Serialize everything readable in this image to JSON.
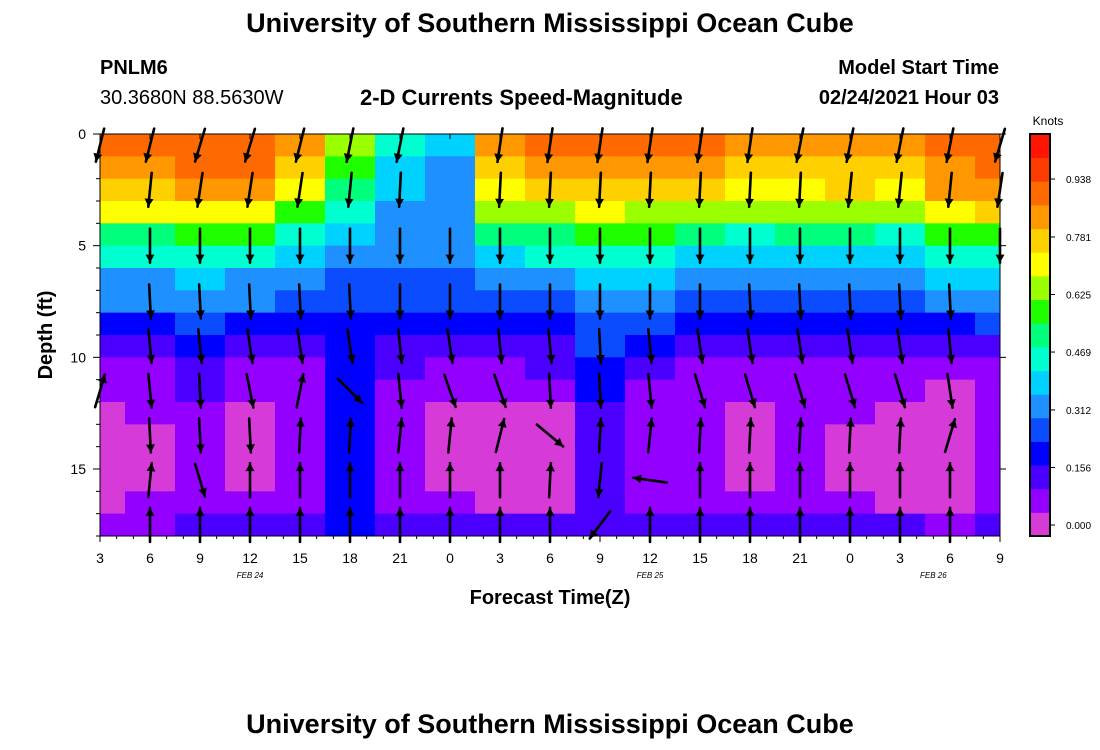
{
  "header": {
    "title": "University of Southern Mississippi Ocean Cube",
    "station_id": "PNLM6",
    "station_coords": "30.3680N 88.5630W",
    "model_start_label": "Model Start Time",
    "model_start_value": "02/24/2021 Hour 03",
    "footer_title": "University of Southern Mississippi Ocean Cube"
  },
  "colors": {
    "arrow": "#000000",
    "scale": [
      "#d63bd8",
      "#9300ff",
      "#4b00ff",
      "#0000ff",
      "#0b4cff",
      "#1e90ff",
      "#00d2ff",
      "#00ffd0",
      "#00ff7a",
      "#1fff00",
      "#9aff00",
      "#ffff00",
      "#ffd000",
      "#ff9800",
      "#ff6a00",
      "#ff3c00",
      "#ff1500"
    ]
  },
  "chart_data": {
    "type": "heatmap",
    "title": "2-D Currents Speed-Magnitude",
    "xlabel": "Forecast Time(Z)",
    "ylabel": "Depth (ft)",
    "x_tick_labels": [
      "3",
      "6",
      "9",
      "12",
      "15",
      "18",
      "21",
      "0",
      "3",
      "6",
      "9",
      "12",
      "15",
      "18",
      "21",
      "0",
      "3",
      "6",
      "9"
    ],
    "x_hours": [
      0,
      3,
      6,
      9,
      12,
      15,
      18,
      21,
      24,
      27,
      30,
      33,
      36,
      39,
      42,
      45,
      48,
      51,
      54
    ],
    "xlim": [
      0,
      54
    ],
    "date_labels": [
      {
        "text": "FEB 24",
        "hour": 9
      },
      {
        "text": "FEB 25",
        "hour": 33
      },
      {
        "text": "FEB 26",
        "hour": 50
      }
    ],
    "y_tick_labels": [
      "0",
      "5",
      "10",
      "15"
    ],
    "y_ticks": [
      0,
      5,
      10,
      15
    ],
    "ylim": [
      0,
      18
    ],
    "colorbar": {
      "units": "Knots",
      "tick_labels": [
        "0.938",
        "0.781",
        "0.625",
        "0.469",
        "0.312",
        "0.156",
        "0.000"
      ],
      "tick_values": [
        0.938,
        0.781,
        0.625,
        0.469,
        0.312,
        0.156,
        0.0
      ],
      "range": [
        0,
        1.09
      ]
    },
    "speed_grid": {
      "hours": [
        0,
        3,
        6,
        9,
        12,
        15,
        18,
        21,
        24,
        27,
        30,
        33,
        36,
        39,
        42,
        45,
        48,
        51,
        54
      ],
      "depths": [
        0.5,
        1.5,
        2.5,
        3.5,
        4.5,
        5.5,
        6.5,
        7.5,
        8.5,
        9.5,
        10.5,
        11.5,
        12.5,
        13.5,
        14.5,
        15.5,
        16.5,
        17.5
      ],
      "rows": [
        [
          0.9,
          0.9,
          0.95,
          0.95,
          0.85,
          0.65,
          0.45,
          0.4,
          0.85,
          0.9,
          0.9,
          0.9,
          0.9,
          0.85,
          0.85,
          0.85,
          0.85,
          0.9,
          0.95
        ],
        [
          0.85,
          0.85,
          0.9,
          0.9,
          0.8,
          0.6,
          0.42,
          0.38,
          0.8,
          0.85,
          0.85,
          0.85,
          0.85,
          0.8,
          0.8,
          0.82,
          0.8,
          0.88,
          0.92
        ],
        [
          0.8,
          0.8,
          0.85,
          0.85,
          0.72,
          0.55,
          0.4,
          0.36,
          0.75,
          0.8,
          0.8,
          0.8,
          0.8,
          0.75,
          0.75,
          0.78,
          0.75,
          0.85,
          0.88
        ],
        [
          0.72,
          0.72,
          0.75,
          0.75,
          0.62,
          0.48,
          0.38,
          0.35,
          0.65,
          0.7,
          0.72,
          0.7,
          0.68,
          0.65,
          0.65,
          0.68,
          0.65,
          0.75,
          0.8
        ],
        [
          0.55,
          0.55,
          0.6,
          0.58,
          0.5,
          0.42,
          0.36,
          0.34,
          0.52,
          0.55,
          0.6,
          0.58,
          0.52,
          0.5,
          0.52,
          0.55,
          0.5,
          0.6,
          0.62
        ],
        [
          0.45,
          0.45,
          0.48,
          0.45,
          0.42,
          0.38,
          0.34,
          0.33,
          0.42,
          0.45,
          0.5,
          0.48,
          0.42,
          0.4,
          0.42,
          0.44,
          0.42,
          0.48,
          0.5
        ],
        [
          0.38,
          0.38,
          0.4,
          0.38,
          0.36,
          0.32,
          0.3,
          0.3,
          0.35,
          0.38,
          0.42,
          0.4,
          0.36,
          0.34,
          0.35,
          0.36,
          0.35,
          0.4,
          0.42
        ],
        [
          0.33,
          0.33,
          0.35,
          0.33,
          0.3,
          0.28,
          0.28,
          0.27,
          0.3,
          0.32,
          0.36,
          0.34,
          0.3,
          0.29,
          0.3,
          0.3,
          0.3,
          0.33,
          0.35
        ],
        [
          0.25,
          0.25,
          0.28,
          0.25,
          0.22,
          0.25,
          0.24,
          0.22,
          0.22,
          0.25,
          0.3,
          0.28,
          0.22,
          0.22,
          0.22,
          0.22,
          0.22,
          0.25,
          0.27
        ],
        [
          0.16,
          0.18,
          0.22,
          0.16,
          0.14,
          0.24,
          0.18,
          0.15,
          0.15,
          0.18,
          0.26,
          0.2,
          0.14,
          0.14,
          0.14,
          0.14,
          0.14,
          0.16,
          0.18
        ],
        [
          0.1,
          0.12,
          0.18,
          0.1,
          0.1,
          0.22,
          0.14,
          0.1,
          0.1,
          0.13,
          0.22,
          0.14,
          0.1,
          0.09,
          0.1,
          0.1,
          0.09,
          0.1,
          0.12
        ],
        [
          0.08,
          0.1,
          0.15,
          0.08,
          0.08,
          0.21,
          0.11,
          0.08,
          0.08,
          0.1,
          0.2,
          0.1,
          0.08,
          0.07,
          0.08,
          0.08,
          0.07,
          0.06,
          0.08
        ],
        [
          0.06,
          0.08,
          0.12,
          0.06,
          0.08,
          0.2,
          0.1,
          0.06,
          0.05,
          0.05,
          0.19,
          0.08,
          0.08,
          0.06,
          0.07,
          0.07,
          0.05,
          0.04,
          0.08
        ],
        [
          0.05,
          0.06,
          0.1,
          0.06,
          0.08,
          0.2,
          0.09,
          0.06,
          0.04,
          0.03,
          0.18,
          0.07,
          0.08,
          0.06,
          0.07,
          0.06,
          0.04,
          0.03,
          0.08
        ],
        [
          0.05,
          0.05,
          0.09,
          0.06,
          0.08,
          0.2,
          0.09,
          0.05,
          0.04,
          0.01,
          0.16,
          0.07,
          0.08,
          0.06,
          0.07,
          0.06,
          0.04,
          0.03,
          0.08
        ],
        [
          0.05,
          0.06,
          0.1,
          0.06,
          0.08,
          0.2,
          0.1,
          0.06,
          0.04,
          0.02,
          0.15,
          0.07,
          0.08,
          0.06,
          0.07,
          0.06,
          0.04,
          0.04,
          0.08
        ],
        [
          0.06,
          0.07,
          0.11,
          0.08,
          0.1,
          0.2,
          0.12,
          0.08,
          0.06,
          0.05,
          0.13,
          0.08,
          0.09,
          0.08,
          0.09,
          0.09,
          0.06,
          0.06,
          0.1
        ],
        [
          0.1,
          0.12,
          0.16,
          0.14,
          0.16,
          0.22,
          0.18,
          0.16,
          0.14,
          0.14,
          0.18,
          0.16,
          0.16,
          0.15,
          0.16,
          0.18,
          0.14,
          0.12,
          0.16
        ]
      ]
    },
    "vectors": {
      "hours": [
        0,
        3,
        6,
        9,
        12,
        15,
        18,
        21,
        24,
        27,
        30,
        33,
        36,
        39,
        42,
        45,
        48,
        51,
        54
      ],
      "depths": [
        0.5,
        2.5,
        5.0,
        7.5,
        9.5,
        11.5,
        13.5,
        15.5,
        17.5
      ],
      "rows": [
        [
          [
            -0.25,
            1.0
          ],
          [
            -0.25,
            1.0
          ],
          [
            -0.3,
            1.0
          ],
          [
            -0.3,
            1.0
          ],
          [
            -0.25,
            1.0
          ],
          [
            -0.2,
            1.0
          ],
          [
            -0.2,
            1.0
          ],
          [
            0,
            0
          ],
          [
            -0.15,
            1.0
          ],
          [
            -0.15,
            1.0
          ],
          [
            -0.15,
            1.0
          ],
          [
            -0.15,
            1.0
          ],
          [
            -0.15,
            1.0
          ],
          [
            -0.15,
            1.0
          ],
          [
            -0.2,
            1.0
          ],
          [
            -0.2,
            1.0
          ],
          [
            -0.2,
            1.0
          ],
          [
            -0.2,
            1.0
          ],
          [
            -0.3,
            1.0
          ]
        ],
        [
          [
            0,
            0
          ],
          [
            -0.1,
            1.0
          ],
          [
            -0.15,
            1.0
          ],
          [
            -0.15,
            1.0
          ],
          [
            -0.15,
            1.0
          ],
          [
            -0.1,
            1.0
          ],
          [
            -0.05,
            1.0
          ],
          [
            0,
            0
          ],
          [
            -0.05,
            1.0
          ],
          [
            -0.05,
            1.0
          ],
          [
            -0.05,
            1.0
          ],
          [
            -0.05,
            1.0
          ],
          [
            -0.05,
            1.0
          ],
          [
            -0.05,
            1.0
          ],
          [
            -0.05,
            1.0
          ],
          [
            -0.1,
            1.0
          ],
          [
            -0.1,
            1.0
          ],
          [
            -0.1,
            1.0
          ],
          [
            -0.15,
            1.0
          ]
        ],
        [
          [
            0,
            0
          ],
          [
            0,
            1.0
          ],
          [
            0,
            1.0
          ],
          [
            0,
            1.0
          ],
          [
            0,
            1.0
          ],
          [
            0,
            1.0
          ],
          [
            0,
            1.0
          ],
          [
            0,
            1.0
          ],
          [
            0,
            1.0
          ],
          [
            0,
            1.0
          ],
          [
            0,
            1.0
          ],
          [
            0,
            1.0
          ],
          [
            0,
            1.0
          ],
          [
            0,
            1.0
          ],
          [
            0,
            1.0
          ],
          [
            0,
            1.0
          ],
          [
            0,
            1.0
          ],
          [
            0,
            1.0
          ],
          [
            0,
            1.0
          ]
        ],
        [
          [
            0,
            0
          ],
          [
            0.05,
            1.0
          ],
          [
            0.05,
            1.0
          ],
          [
            0.05,
            1.0
          ],
          [
            0.05,
            1.0
          ],
          [
            0.05,
            1.0
          ],
          [
            0,
            1.0
          ],
          [
            0,
            1.0
          ],
          [
            0,
            1.0
          ],
          [
            0,
            1.0
          ],
          [
            0,
            1.0
          ],
          [
            0,
            1.0
          ],
          [
            0,
            1.0
          ],
          [
            0.05,
            1.0
          ],
          [
            0.05,
            1.0
          ],
          [
            0.05,
            1.0
          ],
          [
            0.05,
            1.0
          ],
          [
            0.05,
            1.0
          ],
          [
            0,
            0
          ]
        ],
        [
          [
            0,
            0
          ],
          [
            0.1,
            1.0
          ],
          [
            0.1,
            1.0
          ],
          [
            0.15,
            1.0
          ],
          [
            0.15,
            1.0
          ],
          [
            0.15,
            1.0
          ],
          [
            0.1,
            1.0
          ],
          [
            0.15,
            1.0
          ],
          [
            0.1,
            1.0
          ],
          [
            0.1,
            1.0
          ],
          [
            0.05,
            1.0
          ],
          [
            0.1,
            1.0
          ],
          [
            0.15,
            1.0
          ],
          [
            0.15,
            1.0
          ],
          [
            0.15,
            1.0
          ],
          [
            0.15,
            1.0
          ],
          [
            0.15,
            1.0
          ],
          [
            0.1,
            1.0
          ],
          [
            0,
            0
          ]
        ],
        [
          [
            0.3,
            -1.0
          ],
          [
            0.1,
            1.0
          ],
          [
            0.05,
            1.0
          ],
          [
            0.2,
            1.0
          ],
          [
            0.2,
            -1.0
          ],
          [
            0.6,
            0.6
          ],
          [
            0.1,
            1.0
          ],
          [
            0.35,
            1.0
          ],
          [
            0.35,
            1.0
          ],
          [
            0.05,
            1.0
          ],
          [
            0.05,
            1.0
          ],
          [
            0.1,
            1.0
          ],
          [
            0.3,
            1.0
          ],
          [
            0.3,
            1.0
          ],
          [
            0.3,
            1.0
          ],
          [
            0.3,
            1.0
          ],
          [
            0.3,
            1.0
          ],
          [
            0.15,
            1.0
          ],
          [
            0,
            0
          ]
        ],
        [
          [
            0,
            0
          ],
          [
            0.05,
            1.0
          ],
          [
            0.05,
            1.0
          ],
          [
            0.05,
            1.0
          ],
          [
            0.05,
            -1.0
          ],
          [
            0.05,
            -1.0
          ],
          [
            0.1,
            -1.0
          ],
          [
            0.1,
            -1.0
          ],
          [
            0.25,
            -1.0
          ],
          [
            0.6,
            0.5
          ],
          [
            0.05,
            -1.0
          ],
          [
            0.1,
            -1.0
          ],
          [
            0.05,
            -1.0
          ],
          [
            0.05,
            -1.0
          ],
          [
            0.05,
            -1.0
          ],
          [
            0.05,
            -1.0
          ],
          [
            0.05,
            -1.0
          ],
          [
            0.3,
            -1.0
          ],
          [
            0,
            0
          ]
        ],
        [
          [
            0,
            0
          ],
          [
            0.1,
            -1.0
          ],
          [
            0.3,
            1.0
          ],
          [
            0,
            -1.0
          ],
          [
            0,
            -1.0
          ],
          [
            0,
            -1.0
          ],
          [
            0,
            -1.0
          ],
          [
            0,
            -1.0
          ],
          [
            0,
            -1.0
          ],
          [
            0.05,
            -1.0
          ],
          [
            -0.1,
            1.0
          ],
          [
            -0.7,
            -0.1
          ],
          [
            0,
            -1.0
          ],
          [
            0,
            -1.0
          ],
          [
            0,
            -1.0
          ],
          [
            0,
            -1.0
          ],
          [
            0,
            -1.0
          ],
          [
            0,
            -1.0
          ],
          [
            0,
            0
          ]
        ],
        [
          [
            0,
            0
          ],
          [
            0,
            -1.0
          ],
          [
            0,
            -1.0
          ],
          [
            0,
            -1.0
          ],
          [
            0,
            -1.0
          ],
          [
            0,
            -1.0
          ],
          [
            0,
            -1.0
          ],
          [
            0,
            -1.0
          ],
          [
            0,
            -1.0
          ],
          [
            0,
            -1.0
          ],
          [
            -0.6,
            0.8
          ],
          [
            0,
            -1.0
          ],
          [
            0,
            -1.0
          ],
          [
            0,
            -1.0
          ],
          [
            0,
            -1.0
          ],
          [
            0,
            -1.0
          ],
          [
            0,
            -1.0
          ],
          [
            0,
            -1.0
          ],
          [
            0,
            0
          ]
        ]
      ]
    }
  }
}
